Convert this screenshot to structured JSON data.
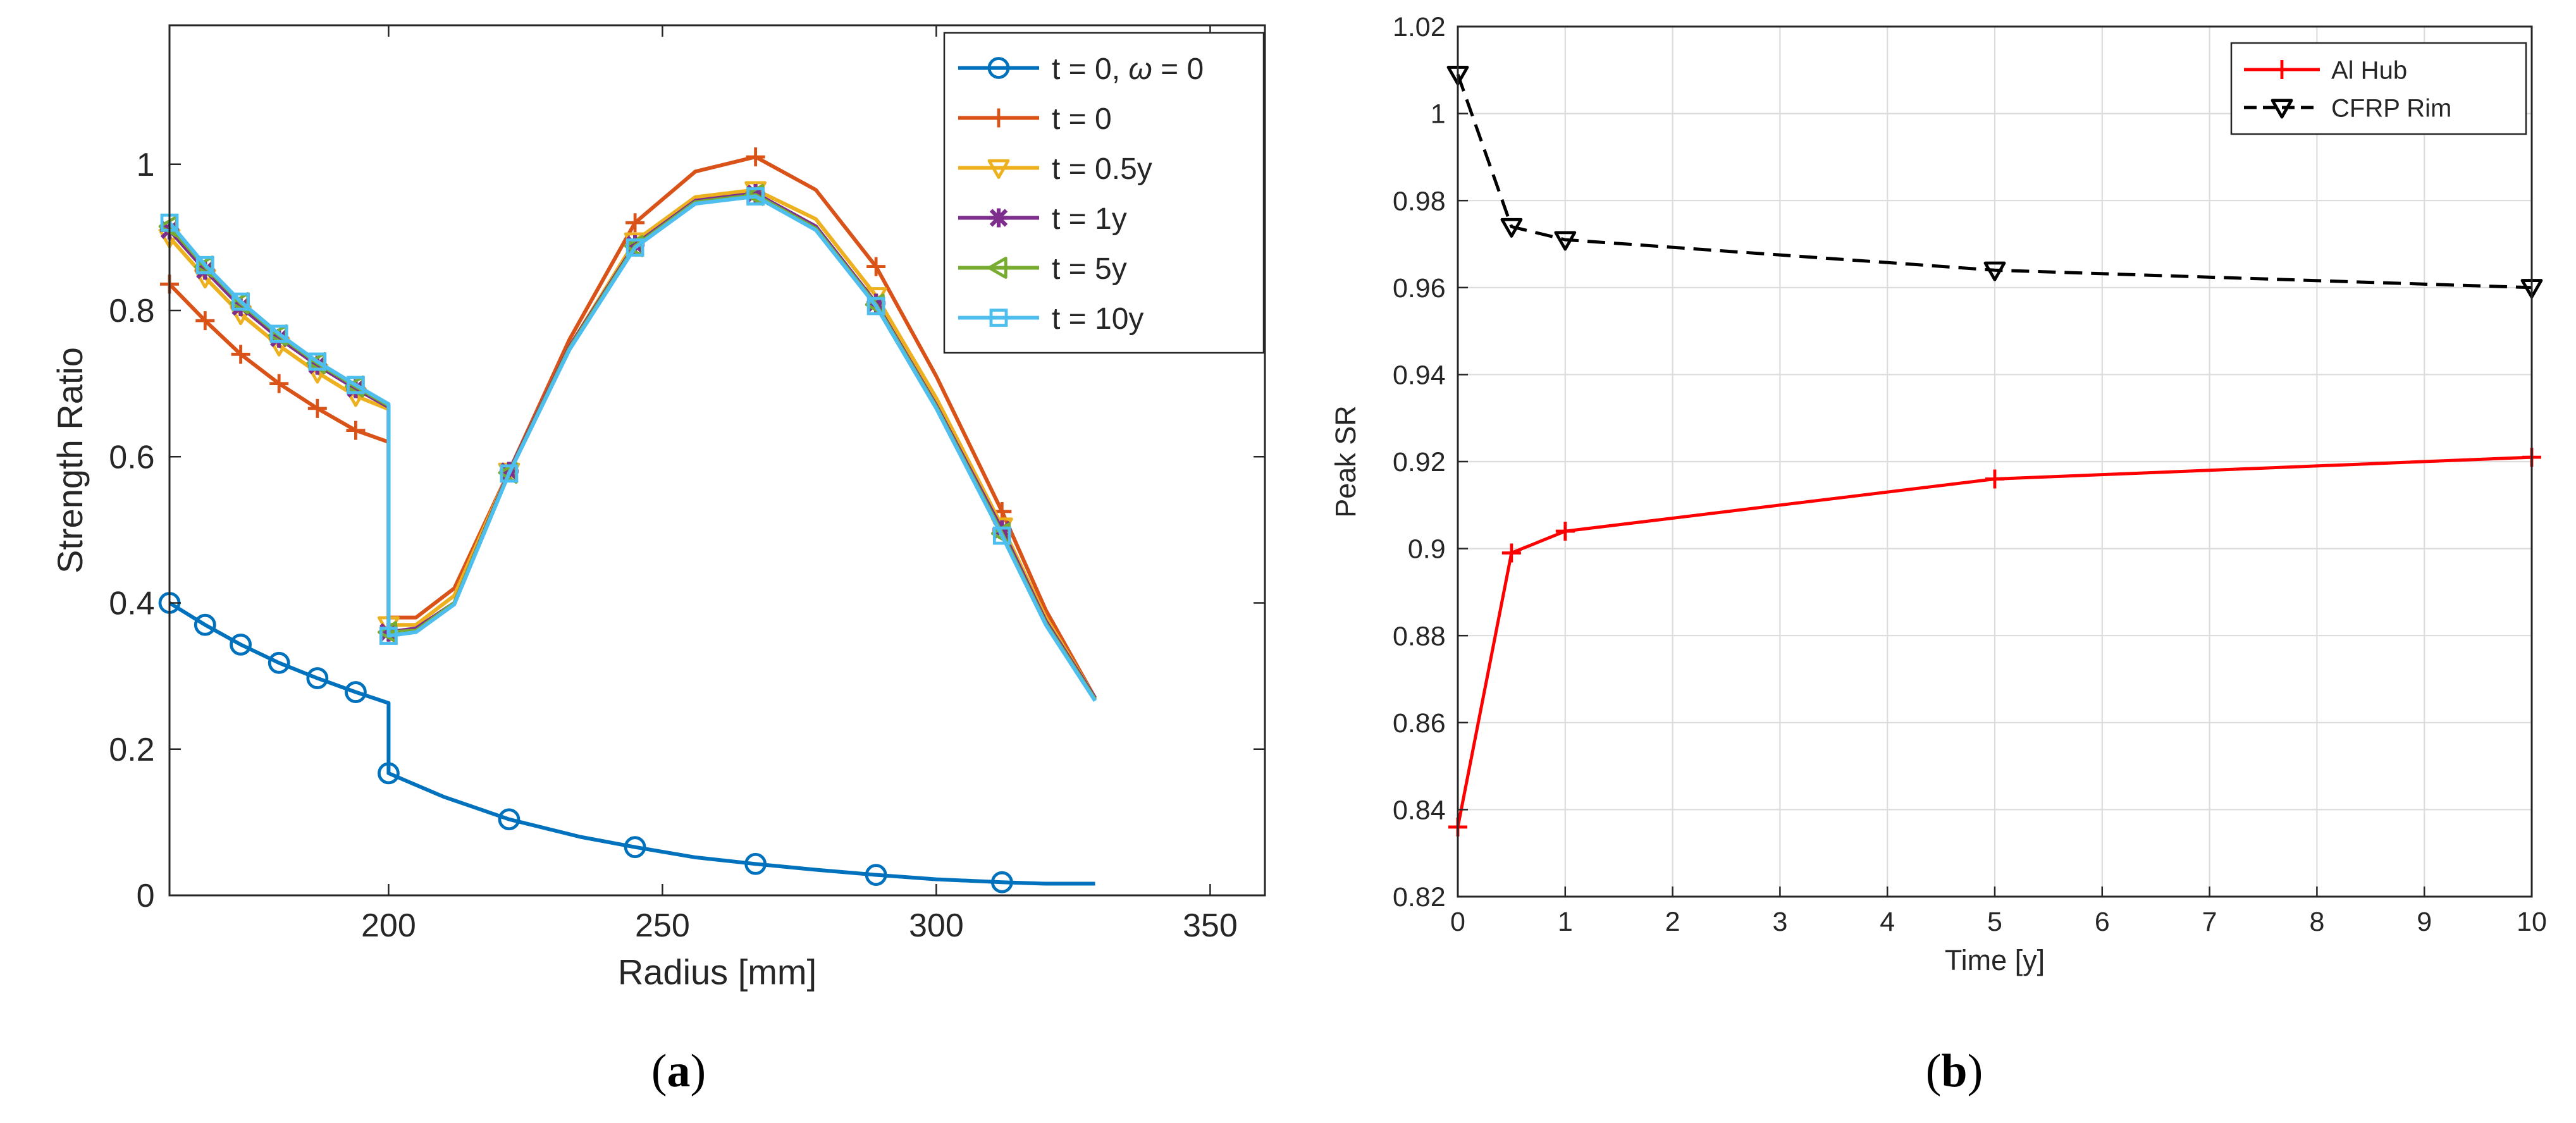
{
  "chart_data": [
    {
      "id": "a",
      "type": "line",
      "caption": "a",
      "xlabel": "Radius [mm]",
      "ylabel": "Strength Ratio",
      "xlim": [
        160,
        360
      ],
      "ylim": [
        0,
        1.19
      ],
      "xticks": [
        200,
        250,
        300,
        350
      ],
      "yticks": [
        0,
        0.2,
        0.4,
        0.6,
        0.8,
        1
      ],
      "xtick_labels": [
        "200",
        "250",
        "300",
        "350"
      ],
      "ytick_labels": [
        "0",
        "0.2",
        "0.4",
        "0.6",
        "0.8",
        "1"
      ],
      "grid": false,
      "legend_position": "top-right",
      "series": [
        {
          "name": "t = 0, ω = 0",
          "label_plain": "t = 0, ",
          "label_symbol": "ω",
          "label_tail": " = 0",
          "color": "#0072BD",
          "marker": "circle",
          "x": [
            160,
            166.5,
            173,
            180,
            187,
            194,
            200,
            200,
            210,
            222,
            235,
            245,
            256,
            267,
            278,
            289,
            300,
            312,
            320,
            329
          ],
          "y": [
            0.4,
            0.37,
            0.343,
            0.318,
            0.297,
            0.278,
            0.263,
            0.167,
            0.135,
            0.104,
            0.08,
            0.066,
            0.052,
            0.043,
            0.035,
            0.028,
            0.022,
            0.018,
            0.016,
            0.016
          ],
          "marker_x": [
            160,
            166.5,
            173,
            180,
            187,
            194,
            200,
            222,
            245,
            267,
            289,
            312
          ],
          "marker_y": [
            0.4,
            0.37,
            0.343,
            0.318,
            0.297,
            0.278,
            0.167,
            0.104,
            0.066,
            0.043,
            0.028,
            0.018
          ]
        },
        {
          "name": "t = 0",
          "label_plain": "t = 0",
          "color": "#D95319",
          "marker": "plus",
          "x": [
            160,
            166.5,
            173,
            180,
            187,
            194,
            200,
            200,
            205,
            212,
            222,
            233,
            245,
            256,
            267,
            278,
            289,
            300,
            312,
            320,
            329
          ],
          "y": [
            0.836,
            0.786,
            0.74,
            0.7,
            0.666,
            0.636,
            0.62,
            0.38,
            0.38,
            0.42,
            0.58,
            0.76,
            0.92,
            0.99,
            1.01,
            0.965,
            0.86,
            0.71,
            0.525,
            0.39,
            0.27
          ],
          "marker_x": [
            160,
            166.5,
            173,
            180,
            187,
            194,
            245,
            267,
            289,
            312
          ],
          "marker_y": [
            0.836,
            0.786,
            0.74,
            0.7,
            0.666,
            0.636,
            0.92,
            1.01,
            0.86,
            0.525
          ]
        },
        {
          "name": "t = 0.5y",
          "label_plain": "t = 0.5y",
          "color": "#EDB120",
          "marker": "triangle-down",
          "x": [
            160,
            166.5,
            173,
            180,
            187,
            194,
            200,
            200,
            205,
            212,
            222,
            233,
            245,
            256,
            267,
            278,
            289,
            300,
            312,
            320,
            329
          ],
          "y": [
            0.9,
            0.845,
            0.795,
            0.752,
            0.715,
            0.683,
            0.665,
            0.37,
            0.37,
            0.41,
            0.58,
            0.75,
            0.895,
            0.955,
            0.965,
            0.925,
            0.82,
            0.68,
            0.505,
            0.38,
            0.27
          ],
          "marker_x": [
            160,
            166.5,
            173,
            180,
            187,
            194,
            200,
            222,
            245,
            267,
            289,
            312
          ],
          "marker_y": [
            0.9,
            0.845,
            0.795,
            0.752,
            0.715,
            0.683,
            0.37,
            0.58,
            0.895,
            0.965,
            0.82,
            0.505
          ]
        },
        {
          "name": "t = 1y",
          "label_plain": "t = 1y",
          "color": "#7E2F8E",
          "marker": "star",
          "x": [
            160,
            166.5,
            173,
            180,
            187,
            194,
            200,
            200,
            205,
            212,
            222,
            233,
            245,
            256,
            267,
            278,
            289,
            300,
            312,
            320,
            329
          ],
          "y": [
            0.91,
            0.855,
            0.805,
            0.762,
            0.725,
            0.693,
            0.668,
            0.36,
            0.365,
            0.4,
            0.58,
            0.75,
            0.89,
            0.95,
            0.96,
            0.915,
            0.81,
            0.67,
            0.5,
            0.375,
            0.27
          ],
          "marker_x": [
            160,
            166.5,
            173,
            180,
            187,
            194,
            200,
            222,
            245,
            267,
            289,
            312
          ],
          "marker_y": [
            0.91,
            0.855,
            0.805,
            0.762,
            0.725,
            0.693,
            0.36,
            0.58,
            0.89,
            0.96,
            0.81,
            0.5
          ]
        },
        {
          "name": "t = 5y",
          "label_plain": "t = 5y",
          "color": "#77AC30",
          "marker": "triangle-left",
          "x": [
            160,
            166.5,
            173,
            180,
            187,
            194,
            200,
            200,
            205,
            212,
            222,
            233,
            245,
            256,
            267,
            278,
            289,
            300,
            312,
            320,
            329
          ],
          "y": [
            0.915,
            0.86,
            0.81,
            0.766,
            0.728,
            0.696,
            0.67,
            0.36,
            0.362,
            0.4,
            0.578,
            0.748,
            0.888,
            0.948,
            0.958,
            0.912,
            0.808,
            0.668,
            0.495,
            0.372,
            0.268
          ],
          "marker_x": [
            160,
            166.5,
            173,
            180,
            187,
            194,
            200,
            222,
            245,
            267,
            289,
            312
          ],
          "marker_y": [
            0.915,
            0.86,
            0.81,
            0.766,
            0.728,
            0.696,
            0.36,
            0.578,
            0.888,
            0.958,
            0.808,
            0.495
          ]
        },
        {
          "name": "t = 10y",
          "label_plain": "t = 10y",
          "color": "#4DBEEE",
          "marker": "square",
          "x": [
            160,
            166.5,
            173,
            180,
            187,
            194,
            200,
            200,
            205,
            212,
            222,
            233,
            245,
            256,
            267,
            278,
            289,
            300,
            312,
            320,
            329
          ],
          "y": [
            0.92,
            0.862,
            0.812,
            0.768,
            0.73,
            0.698,
            0.672,
            0.355,
            0.36,
            0.398,
            0.577,
            0.746,
            0.886,
            0.946,
            0.956,
            0.91,
            0.806,
            0.666,
            0.492,
            0.37,
            0.266
          ],
          "marker_x": [
            160,
            166.5,
            173,
            180,
            187,
            194,
            200,
            222,
            245,
            267,
            289,
            312
          ],
          "marker_y": [
            0.92,
            0.862,
            0.812,
            0.768,
            0.73,
            0.698,
            0.355,
            0.577,
            0.886,
            0.956,
            0.806,
            0.492
          ]
        }
      ]
    },
    {
      "id": "b",
      "type": "line",
      "caption": "b",
      "xlabel": "Time [y]",
      "ylabel": "Peak SR",
      "xlim": [
        0,
        10
      ],
      "ylim": [
        0.82,
        1.02
      ],
      "xticks": [
        0,
        1,
        2,
        3,
        4,
        5,
        6,
        7,
        8,
        9,
        10
      ],
      "yticks": [
        0.82,
        0.84,
        0.86,
        0.88,
        0.9,
        0.92,
        0.94,
        0.96,
        0.98,
        1,
        1.02
      ],
      "xtick_labels": [
        "0",
        "1",
        "2",
        "3",
        "4",
        "5",
        "6",
        "7",
        "8",
        "9",
        "10"
      ],
      "ytick_labels": [
        "0.82",
        "0.84",
        "0.86",
        "0.88",
        "0.9",
        "0.92",
        "0.94",
        "0.96",
        "0.98",
        "1",
        "1.02"
      ],
      "grid": true,
      "legend_position": "top-right",
      "series": [
        {
          "name": "Al Hub",
          "label_plain": "Al Hub",
          "color": "#FF0000",
          "marker": "plus",
          "dash": false,
          "x": [
            0,
            0.5,
            1,
            5,
            10
          ],
          "y": [
            0.836,
            0.899,
            0.904,
            0.916,
            0.921
          ],
          "marker_x": [
            0,
            0.5,
            1,
            5,
            10
          ],
          "marker_y": [
            0.836,
            0.899,
            0.904,
            0.916,
            0.921
          ]
        },
        {
          "name": "CFRP Rim",
          "label_plain": "CFRP Rim",
          "color": "#000000",
          "marker": "triangle-down",
          "dash": true,
          "x": [
            0,
            0.5,
            1,
            5,
            10
          ],
          "y": [
            1.009,
            0.974,
            0.971,
            0.964,
            0.96
          ],
          "marker_x": [
            0,
            0.5,
            1,
            5,
            10
          ],
          "marker_y": [
            1.009,
            0.974,
            0.971,
            0.964,
            0.96
          ]
        }
      ]
    }
  ]
}
